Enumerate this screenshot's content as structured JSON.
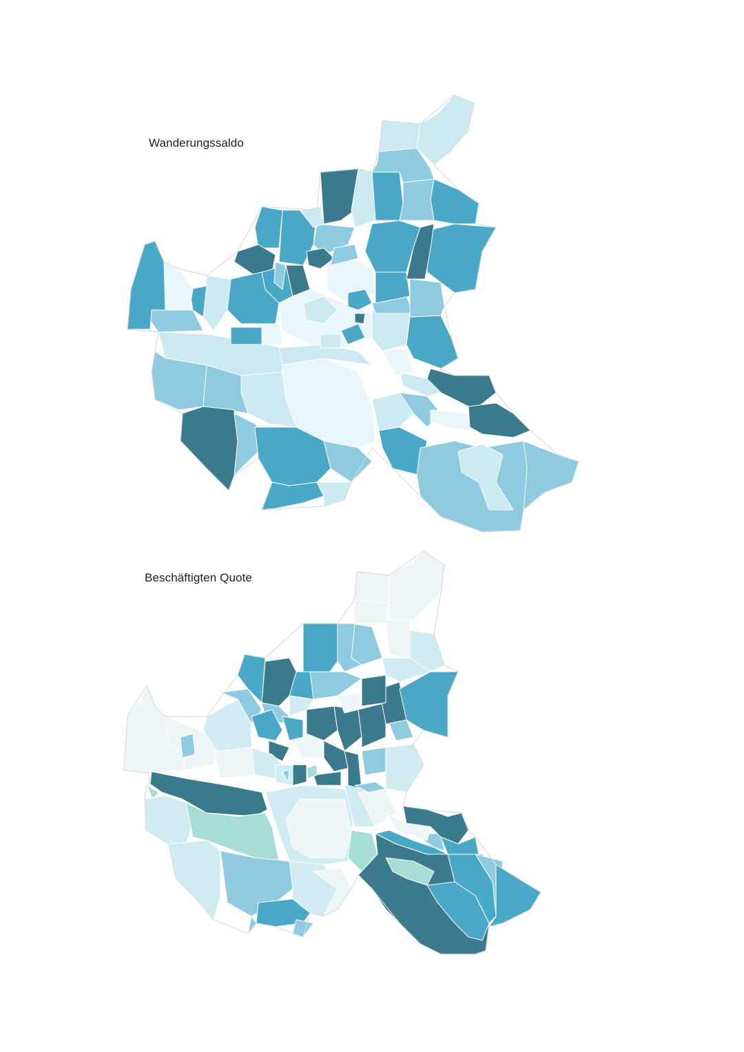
{
  "maps": [
    {
      "title": "Wanderungssaldo",
      "palette": [
        "#e8f5fa",
        "#cce9f2",
        "#8fcbe0",
        "#4aa8c7",
        "#3b7a8c"
      ]
    },
    {
      "title": "Beschäftigten Quote",
      "palette": [
        "#eef5f7",
        "#d1ebf3",
        "#8fcbe0",
        "#4aa8c7",
        "#3b7a8c",
        "#a8ddd3"
      ]
    }
  ]
}
